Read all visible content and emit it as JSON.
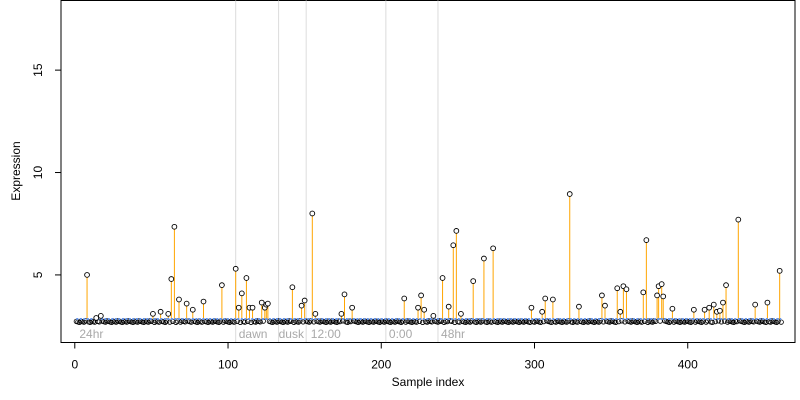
{
  "chart_data": {
    "type": "scatter",
    "title": "",
    "xlabel": "Sample index",
    "ylabel": "Expression",
    "xlim": [
      -9,
      470
    ],
    "ylim": [
      1.7,
      18.4
    ],
    "x_ticks": [
      0,
      100,
      200,
      300,
      400
    ],
    "y_ticks": [
      5,
      10,
      15
    ],
    "x_tick_labels": [
      "0",
      "100",
      "200",
      "300",
      "400"
    ],
    "y_tick_labels": [
      "5",
      "10",
      "15"
    ],
    "grid": false,
    "legend": "none",
    "baseline": 2.85,
    "baseline_color": "#6495ED",
    "stem_color": "#FFA500",
    "marker_edge_color": "#000000",
    "vline_color": "#dcdcdc",
    "annotation_color": "#a9a9a9",
    "vlines": [
      105,
      133,
      151,
      203,
      237
    ],
    "annotations": [
      {
        "x": 3,
        "text": "24hr"
      },
      {
        "x": 107,
        "text": "dawn"
      },
      {
        "x": 133,
        "text": "dusk"
      },
      {
        "x": 154,
        "text": "12:00"
      },
      {
        "x": 205,
        "text": "0:00"
      },
      {
        "x": 239,
        "text": "48hr"
      }
    ],
    "n_samples": 461,
    "background_level": 2.72,
    "points": [
      [
        8,
        5.0
      ],
      [
        14,
        2.9
      ],
      [
        17,
        3.0
      ],
      [
        51,
        3.1
      ],
      [
        56,
        3.2
      ],
      [
        61,
        3.1
      ],
      [
        63,
        4.8
      ],
      [
        65,
        7.35
      ],
      [
        68,
        3.8
      ],
      [
        73,
        3.6
      ],
      [
        77,
        3.3
      ],
      [
        84,
        3.7
      ],
      [
        96,
        4.5
      ],
      [
        105,
        5.3
      ],
      [
        107,
        3.4
      ],
      [
        109,
        4.1
      ],
      [
        112,
        4.85
      ],
      [
        114,
        3.4
      ],
      [
        116,
        3.4
      ],
      [
        122,
        3.65
      ],
      [
        124,
        3.4
      ],
      [
        125,
        3.55
      ],
      [
        126,
        3.6
      ],
      [
        142,
        4.4
      ],
      [
        148,
        3.5
      ],
      [
        150,
        3.75
      ],
      [
        155,
        8.0
      ],
      [
        157,
        3.1
      ],
      [
        174,
        3.1
      ],
      [
        176,
        4.05
      ],
      [
        181,
        3.4
      ],
      [
        215,
        3.85
      ],
      [
        224,
        3.4
      ],
      [
        226,
        4.0
      ],
      [
        228,
        3.3
      ],
      [
        234,
        3.0
      ],
      [
        240,
        4.85
      ],
      [
        244,
        3.45
      ],
      [
        247,
        6.45
      ],
      [
        249,
        7.15
      ],
      [
        252,
        3.1
      ],
      [
        260,
        4.7
      ],
      [
        267,
        5.8
      ],
      [
        273,
        6.3
      ],
      [
        298,
        3.4
      ],
      [
        305,
        3.2
      ],
      [
        307,
        3.85
      ],
      [
        312,
        3.8
      ],
      [
        323,
        8.95
      ],
      [
        329,
        3.45
      ],
      [
        344,
        4.0
      ],
      [
        346,
        3.5
      ],
      [
        354,
        4.35
      ],
      [
        356,
        3.2
      ],
      [
        358,
        4.45
      ],
      [
        360,
        4.3
      ],
      [
        371,
        4.15
      ],
      [
        373,
        6.7
      ],
      [
        380,
        4.0
      ],
      [
        381,
        4.45
      ],
      [
        383,
        4.55
      ],
      [
        384,
        3.95
      ],
      [
        390,
        3.35
      ],
      [
        404,
        3.3
      ],
      [
        411,
        3.3
      ],
      [
        414,
        3.4
      ],
      [
        417,
        3.55
      ],
      [
        419,
        3.2
      ],
      [
        421,
        3.25
      ],
      [
        423,
        3.65
      ],
      [
        425,
        4.5
      ],
      [
        433,
        7.7
      ],
      [
        444,
        3.55
      ],
      [
        452,
        3.65
      ],
      [
        460,
        5.2
      ]
    ]
  }
}
